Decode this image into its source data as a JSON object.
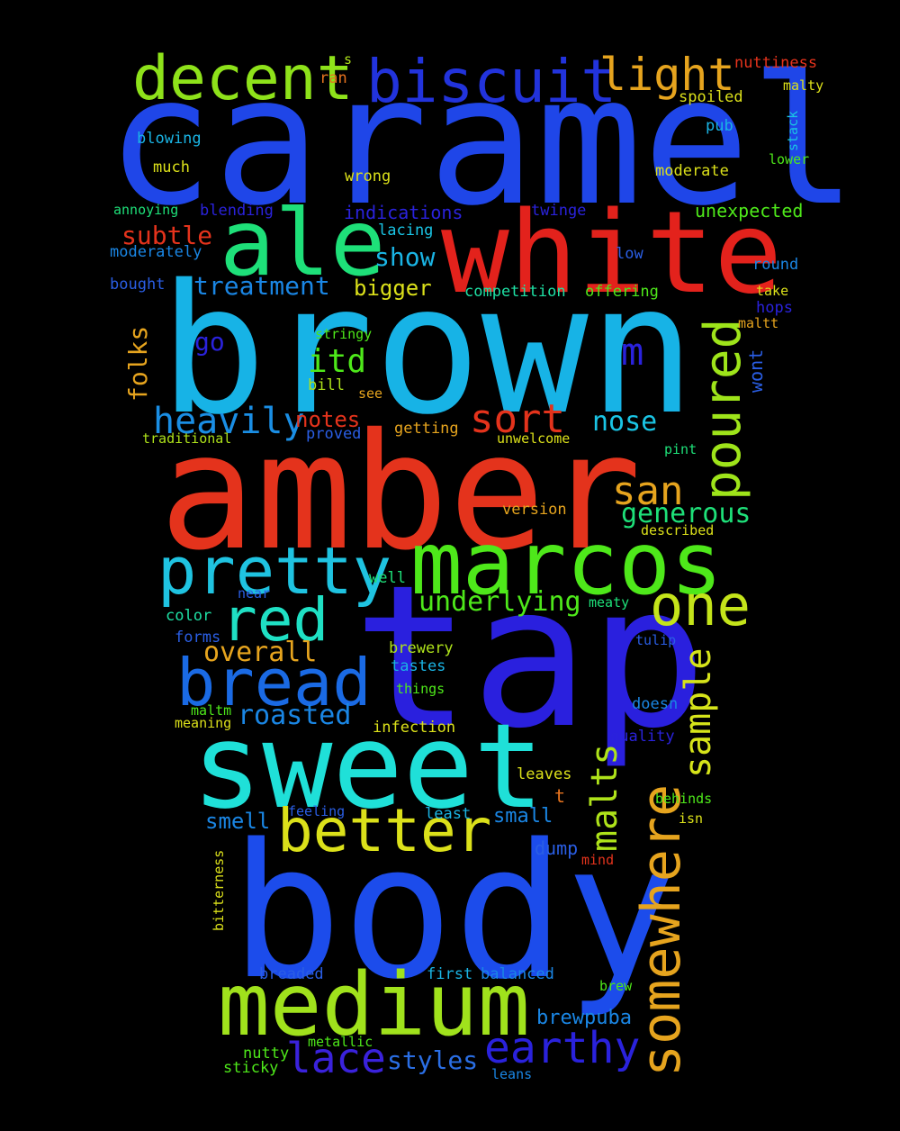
{
  "words": [
    {
      "text": "caramel",
      "color": "#1f46e8"
    },
    {
      "text": "brown",
      "color": "#17b3e6"
    },
    {
      "text": "amber",
      "color": "#e4331c"
    },
    {
      "text": "tap",
      "color": "#2a20de"
    },
    {
      "text": "body",
      "color": "#1c4ceb"
    },
    {
      "text": "sweet",
      "color": "#1fe0d8"
    },
    {
      "text": "white",
      "color": "#e3221c"
    },
    {
      "text": "marcos",
      "color": "#4ee81a"
    },
    {
      "text": "medium",
      "color": "#a0e21c"
    },
    {
      "text": "ale",
      "color": "#1ee079"
    },
    {
      "text": "biscuit",
      "color": "#2233dc"
    },
    {
      "text": "pretty",
      "color": "#1fc3e1"
    },
    {
      "text": "bread",
      "color": "#1a6ae4"
    },
    {
      "text": "better",
      "color": "#dbe01a"
    },
    {
      "text": "somewhere",
      "color": "#e6a41e"
    },
    {
      "text": "decent",
      "color": "#8ee21a"
    },
    {
      "text": "red",
      "color": "#1fe0c4"
    },
    {
      "text": "one",
      "color": "#c4e41a"
    },
    {
      "text": "poured",
      "color": "#9ee41a"
    },
    {
      "text": "light",
      "color": "#e6a41e"
    },
    {
      "text": "earthy",
      "color": "#2a22dc"
    },
    {
      "text": "lace",
      "color": "#3a22dc"
    },
    {
      "text": "sort",
      "color": "#e4331c"
    },
    {
      "text": "san",
      "color": "#e6a41e"
    },
    {
      "text": "sample",
      "color": "#d6e41a"
    },
    {
      "text": "malts",
      "color": "#aee21a"
    },
    {
      "text": "heavily",
      "color": "#1a8ee4"
    },
    {
      "text": "itd",
      "color": "#4ee81a"
    },
    {
      "text": "m",
      "color": "#2a22dc"
    },
    {
      "text": "roasted",
      "color": "#1a86e4"
    },
    {
      "text": "overall",
      "color": "#e6a41e"
    },
    {
      "text": "underlying",
      "color": "#4ee81a"
    },
    {
      "text": "generous",
      "color": "#1ee079"
    },
    {
      "text": "nose",
      "color": "#1ac4e4"
    },
    {
      "text": "treatment",
      "color": "#1a86e4"
    },
    {
      "text": "subtle",
      "color": "#e4331c"
    },
    {
      "text": "styles",
      "color": "#2a6ee4"
    },
    {
      "text": "folks",
      "color": "#e6a41e"
    },
    {
      "text": "show",
      "color": "#1ab4e4"
    },
    {
      "text": "go",
      "color": "#2a22dc"
    },
    {
      "text": "bigger",
      "color": "#dbe01a"
    },
    {
      "text": "notes",
      "color": "#e4331c"
    },
    {
      "text": "smell",
      "color": "#1a86e4"
    },
    {
      "text": "brewpuba",
      "color": "#1a86e4"
    },
    {
      "text": "small",
      "color": "#1a86e4"
    },
    {
      "text": "indications",
      "color": "#2a22dc"
    },
    {
      "text": "unexpected",
      "color": "#4ee81a"
    },
    {
      "text": "wont",
      "color": "#2a5ee4"
    },
    {
      "text": "dump",
      "color": "#2a5ee4"
    },
    {
      "text": "t",
      "color": "#e6731e"
    },
    {
      "text": "nuttiness",
      "color": "#e4331c"
    },
    {
      "text": "ran",
      "color": "#e6731e"
    },
    {
      "text": "s",
      "color": "#aee21a"
    },
    {
      "text": "malty",
      "color": "#dbe01a"
    },
    {
      "text": "spoiled",
      "color": "#dbe01a"
    },
    {
      "text": "pub",
      "color": "#1ab4e4"
    },
    {
      "text": "stack",
      "color": "#1ac4e4"
    },
    {
      "text": "lower",
      "color": "#4ee81a"
    },
    {
      "text": "moderate",
      "color": "#dbe01a"
    },
    {
      "text": "blowing",
      "color": "#1ab4e4"
    },
    {
      "text": "much",
      "color": "#dbe01a"
    },
    {
      "text": "wrong",
      "color": "#dbe01a"
    },
    {
      "text": "twinge",
      "color": "#2a22dc"
    },
    {
      "text": "annoying",
      "color": "#1ee079"
    },
    {
      "text": "blending",
      "color": "#2a22dc"
    },
    {
      "text": "lacing",
      "color": "#1ac4e4"
    },
    {
      "text": "moderately",
      "color": "#1a86e4"
    },
    {
      "text": "low",
      "color": "#2a5ee4"
    },
    {
      "text": "round",
      "color": "#1a86e4"
    },
    {
      "text": "bought",
      "color": "#2a5ee4"
    },
    {
      "text": "competition",
      "color": "#1ee0a4"
    },
    {
      "text": "offering",
      "color": "#4ee81a"
    },
    {
      "text": "take",
      "color": "#dbe01a"
    },
    {
      "text": "hops",
      "color": "#2a22dc"
    },
    {
      "text": "maltt",
      "color": "#e6a41e"
    },
    {
      "text": "stringy",
      "color": "#4ee81a"
    },
    {
      "text": "bill",
      "color": "#aee21a"
    },
    {
      "text": "see",
      "color": "#e6a41e"
    },
    {
      "text": "traditional",
      "color": "#aee21a"
    },
    {
      "text": "proved",
      "color": "#2a5ee4"
    },
    {
      "text": "getting",
      "color": "#e6a41e"
    },
    {
      "text": "unwelcome",
      "color": "#dbe01a"
    },
    {
      "text": "pint",
      "color": "#1ee079"
    },
    {
      "text": "version",
      "color": "#e6a41e"
    },
    {
      "text": "described",
      "color": "#dbe01a"
    },
    {
      "text": "well",
      "color": "#1ee079"
    },
    {
      "text": "near",
      "color": "#2a5ee4"
    },
    {
      "text": "meaty",
      "color": "#1ee079"
    },
    {
      "text": "color",
      "color": "#1ee0a4"
    },
    {
      "text": "forms",
      "color": "#2a5ee4"
    },
    {
      "text": "tulip",
      "color": "#2a5ee4"
    },
    {
      "text": "brewery",
      "color": "#aee21a"
    },
    {
      "text": "tastes",
      "color": "#1ab4e4"
    },
    {
      "text": "things",
      "color": "#4ee81a"
    },
    {
      "text": "doesn",
      "color": "#1a86e4"
    },
    {
      "text": "maltm",
      "color": "#4ee81a"
    },
    {
      "text": "meaning",
      "color": "#dbe01a"
    },
    {
      "text": "infection",
      "color": "#dbe01a"
    },
    {
      "text": "quality",
      "color": "#2a22dc"
    },
    {
      "text": "leaves",
      "color": "#dbe01a"
    },
    {
      "text": "behinds",
      "color": "#4ee81a"
    },
    {
      "text": "feeling",
      "color": "#2a5ee4"
    },
    {
      "text": "least",
      "color": "#1ab4e4"
    },
    {
      "text": "isn",
      "color": "#dbe01a"
    },
    {
      "text": "mind",
      "color": "#e4331c"
    },
    {
      "text": "bitterness",
      "color": "#dbe01a"
    },
    {
      "text": "breaded",
      "color": "#2a5ee4"
    },
    {
      "text": "first",
      "color": "#1ab4e4"
    },
    {
      "text": "balanced",
      "color": "#1a86e4"
    },
    {
      "text": "brew",
      "color": "#4ee81a"
    },
    {
      "text": "nutty",
      "color": "#4ee81a"
    },
    {
      "text": "metallic",
      "color": "#4ee81a"
    },
    {
      "text": "sticky",
      "color": "#4ee81a"
    },
    {
      "text": "leans",
      "color": "#1a86e4"
    }
  ]
}
